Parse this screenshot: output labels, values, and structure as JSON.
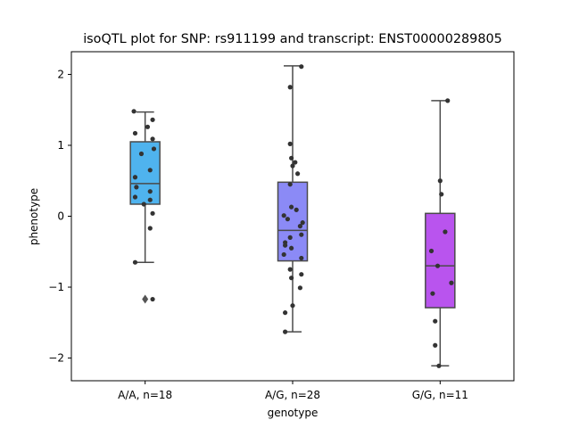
{
  "chart_data": {
    "type": "box",
    "title": "isoQTL plot for SNP: rs911199 and transcript: ENST00000289805",
    "xlabel": "genotype",
    "ylabel": "phenotype",
    "ylim": [
      -2.32,
      2.32
    ],
    "yticks": [
      -2,
      -1,
      0,
      1,
      2
    ],
    "ytick_labels": [
      "−2",
      "−1",
      "0",
      "1",
      "2"
    ],
    "grid": false,
    "categories": [
      "A/A, n=18",
      "A/G, n=28",
      "G/G, n=11"
    ],
    "boxes": [
      {
        "category": "A/A, n=18",
        "color": "#4fb3ee",
        "q1": 0.17,
        "median": 0.46,
        "q3": 1.05,
        "whisker_low": -0.65,
        "whisker_high": 1.47,
        "outliers": [
          -1.17
        ],
        "points": [
          {
            "x": -0.45,
            "y": 1.48
          },
          {
            "x": 0.3,
            "y": 1.36
          },
          {
            "x": 0.1,
            "y": 1.26
          },
          {
            "x": -0.4,
            "y": 1.17
          },
          {
            "x": 0.3,
            "y": 1.09
          },
          {
            "x": 0.35,
            "y": 0.95
          },
          {
            "x": -0.15,
            "y": 0.88
          },
          {
            "x": 0.2,
            "y": 0.65
          },
          {
            "x": -0.4,
            "y": 0.55
          },
          {
            "x": -0.35,
            "y": 0.41
          },
          {
            "x": 0.2,
            "y": 0.35
          },
          {
            "x": -0.4,
            "y": 0.27
          },
          {
            "x": 0.2,
            "y": 0.23
          },
          {
            "x": -0.05,
            "y": 0.17
          },
          {
            "x": 0.3,
            "y": 0.04
          },
          {
            "x": 0.2,
            "y": -0.17
          },
          {
            "x": -0.4,
            "y": -0.65
          },
          {
            "x": 0.3,
            "y": -1.17
          }
        ]
      },
      {
        "category": "A/G, n=28",
        "color": "#8b8af6",
        "q1": -0.63,
        "median": -0.2,
        "q3": 0.48,
        "whisker_low": -1.63,
        "whisker_high": 2.12,
        "outliers": [],
        "points": [
          {
            "x": 0.35,
            "y": 2.11
          },
          {
            "x": -0.1,
            "y": 1.82
          },
          {
            "x": -0.1,
            "y": 1.02
          },
          {
            "x": -0.05,
            "y": 0.82
          },
          {
            "x": 0.1,
            "y": 0.76
          },
          {
            "x": 0.0,
            "y": 0.71
          },
          {
            "x": 0.2,
            "y": 0.6
          },
          {
            "x": -0.1,
            "y": 0.45
          },
          {
            "x": -0.05,
            "y": 0.13
          },
          {
            "x": 0.15,
            "y": 0.09
          },
          {
            "x": -0.35,
            "y": 0.01
          },
          {
            "x": -0.2,
            "y": -0.04
          },
          {
            "x": 0.4,
            "y": -0.09
          },
          {
            "x": 0.3,
            "y": -0.14
          },
          {
            "x": 0.35,
            "y": -0.26
          },
          {
            "x": -0.1,
            "y": -0.3
          },
          {
            "x": -0.3,
            "y": -0.37
          },
          {
            "x": -0.3,
            "y": -0.41
          },
          {
            "x": -0.05,
            "y": -0.45
          },
          {
            "x": -0.35,
            "y": -0.54
          },
          {
            "x": 0.35,
            "y": -0.59
          },
          {
            "x": -0.1,
            "y": -0.75
          },
          {
            "x": 0.35,
            "y": -0.82
          },
          {
            "x": -0.05,
            "y": -0.87
          },
          {
            "x": 0.3,
            "y": -1.01
          },
          {
            "x": 0.0,
            "y": -1.26
          },
          {
            "x": -0.3,
            "y": -1.36
          },
          {
            "x": -0.3,
            "y": -1.63
          }
        ]
      },
      {
        "category": "G/G, n=11",
        "color": "#b954ee",
        "q1": -1.29,
        "median": -0.7,
        "q3": 0.04,
        "whisker_low": -2.11,
        "whisker_high": 1.63,
        "outliers": [],
        "points": [
          {
            "x": 0.3,
            "y": 1.63
          },
          {
            "x": 0.0,
            "y": 0.5
          },
          {
            "x": 0.05,
            "y": 0.31
          },
          {
            "x": 0.2,
            "y": -0.22
          },
          {
            "x": -0.35,
            "y": -0.49
          },
          {
            "x": -0.1,
            "y": -0.7
          },
          {
            "x": 0.45,
            "y": -0.94
          },
          {
            "x": -0.3,
            "y": -1.09
          },
          {
            "x": -0.2,
            "y": -1.48
          },
          {
            "x": -0.2,
            "y": -1.82
          },
          {
            "x": -0.05,
            "y": -2.11
          }
        ]
      }
    ]
  }
}
